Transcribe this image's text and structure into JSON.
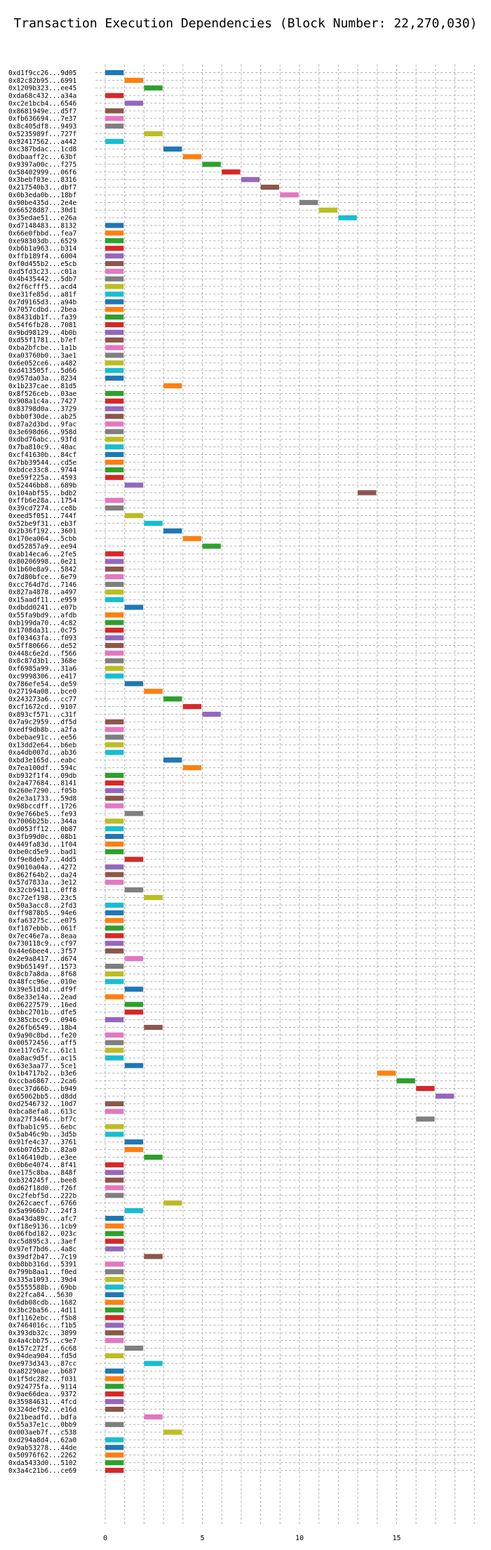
{
  "chart_data": {
    "type": "bar",
    "title": "Transaction Execution Dependencies (Block Number: 22,270,030)",
    "xlabel": "",
    "ylabel": "",
    "xlim": [
      -0.5,
      19
    ],
    "xticks": [
      0,
      5,
      10,
      15
    ],
    "grid": true,
    "palette": [
      "#1f77b4",
      "#ff7f0e",
      "#2ca02c",
      "#d62728",
      "#9467bd",
      "#8c564b",
      "#e377c2",
      "#7f7f7f",
      "#bcbd22",
      "#17becf"
    ],
    "transactions": [
      {
        "label": "0xd1f9cc26...9d05",
        "x": 0
      },
      {
        "label": "0x82c82b95...6991",
        "x": 1
      },
      {
        "label": "0x1209b323...ee45",
        "x": 2
      },
      {
        "label": "0xda68c432...a34a",
        "x": 0
      },
      {
        "label": "0xc2e1bcb4...6546",
        "x": 1
      },
      {
        "label": "0x8681949e...d5f7",
        "x": 0
      },
      {
        "label": "0xfb636694...7e37",
        "x": 0
      },
      {
        "label": "0x8c405df8...9493",
        "x": 0
      },
      {
        "label": "0x5235989f...727f",
        "x": 2
      },
      {
        "label": "0x92417562...a442",
        "x": 0
      },
      {
        "label": "0xc387bdac...1cd8",
        "x": 3
      },
      {
        "label": "0xdbaaff2c...63bf",
        "x": 4
      },
      {
        "label": "0x9397a00c...f275",
        "x": 5
      },
      {
        "label": "0x58402999...06f6",
        "x": 6
      },
      {
        "label": "0x3bebf03e...8316",
        "x": 7
      },
      {
        "label": "0x217540b3...dbf7",
        "x": 8
      },
      {
        "label": "0x0b3eda0b...18bf",
        "x": 9
      },
      {
        "label": "0x90be435d...2e4e",
        "x": 10
      },
      {
        "label": "0x66528d87...30d1",
        "x": 11
      },
      {
        "label": "0x35edae51...e26a",
        "x": 12
      },
      {
        "label": "0xd7148483...8132",
        "x": 0
      },
      {
        "label": "0x66e0fbbd...fea7",
        "x": 0
      },
      {
        "label": "0xe98303db...6529",
        "x": 0
      },
      {
        "label": "0xb6b1a963...b314",
        "x": 0
      },
      {
        "label": "0xffb189f4...6004",
        "x": 0
      },
      {
        "label": "0xf0d455b2...e5cb",
        "x": 0
      },
      {
        "label": "0xd5fd3c23...c01a",
        "x": 0
      },
      {
        "label": "0x4b435442...5db7",
        "x": 0
      },
      {
        "label": "0x2f6cfff5...acd4",
        "x": 0
      },
      {
        "label": "0xe31fe85d...a81f",
        "x": 0
      },
      {
        "label": "0x7d9165d3...a94b",
        "x": 0
      },
      {
        "label": "0x7057cdbd...2bea",
        "x": 0
      },
      {
        "label": "0x8431db1f...fa39",
        "x": 0
      },
      {
        "label": "0x54f6fb28...7081",
        "x": 0
      },
      {
        "label": "0x9bd98129...4b0b",
        "x": 0
      },
      {
        "label": "0xd55f1781...b7ef",
        "x": 0
      },
      {
        "label": "0xba2bfcbe...1a1b",
        "x": 0
      },
      {
        "label": "0xa03760b0...3ae1",
        "x": 0
      },
      {
        "label": "0x6e052ce6...a482",
        "x": 0
      },
      {
        "label": "0xd413505f...5d66",
        "x": 0
      },
      {
        "label": "0x957da03a...8234",
        "x": 0
      },
      {
        "label": "0x1b237cae...81d5",
        "x": 3
      },
      {
        "label": "0x8f526ceb...03ae",
        "x": 0
      },
      {
        "label": "0x908a1c4a...7427",
        "x": 0
      },
      {
        "label": "0x83798d0a...3729",
        "x": 0
      },
      {
        "label": "0xbb0f30de...ab25",
        "x": 0
      },
      {
        "label": "0x87a2d3bd...9fac",
        "x": 0
      },
      {
        "label": "0x3e698d66...958d",
        "x": 0
      },
      {
        "label": "0xdbd76abc...93fd",
        "x": 0
      },
      {
        "label": "0x7ba810c9...40ac",
        "x": 0
      },
      {
        "label": "0xcf41630b...84cf",
        "x": 0
      },
      {
        "label": "0x7bb39544...cd5e",
        "x": 0
      },
      {
        "label": "0xbdce33c8...9744",
        "x": 0
      },
      {
        "label": "0xe59f225a...4593",
        "x": 0
      },
      {
        "label": "0x52446bb8...689b",
        "x": 1
      },
      {
        "label": "0x104abf55...bdb2",
        "x": 13
      },
      {
        "label": "0xffb6e28a...1754",
        "x": 0
      },
      {
        "label": "0x39cd7274...ce8b",
        "x": 0
      },
      {
        "label": "0xeed5f051...744f",
        "x": 1
      },
      {
        "label": "0x52be9f31...eb3f",
        "x": 2
      },
      {
        "label": "0x2b36f192...3601",
        "x": 3
      },
      {
        "label": "0x170ea064...5cbb",
        "x": 4
      },
      {
        "label": "0xd52857a9...ee94",
        "x": 5
      },
      {
        "label": "0xab14eca6...2fe5",
        "x": 0
      },
      {
        "label": "0x80206998...0e21",
        "x": 0
      },
      {
        "label": "0x1b60e8a9...5842",
        "x": 0
      },
      {
        "label": "0x7d80bfce...6e79",
        "x": 0
      },
      {
        "label": "0xcc764d7d...7146",
        "x": 0
      },
      {
        "label": "0x827a4878...a497",
        "x": 0
      },
      {
        "label": "0x15aadf11...e959",
        "x": 0
      },
      {
        "label": "0xdbdd0241...e07b",
        "x": 1
      },
      {
        "label": "0x55fa9bd9...afdb",
        "x": 0
      },
      {
        "label": "0xb199da70...4c82",
        "x": 0
      },
      {
        "label": "0x1708da31...0c75",
        "x": 0
      },
      {
        "label": "0xf03463fa...f093",
        "x": 0
      },
      {
        "label": "0x5ff80666...de52",
        "x": 0
      },
      {
        "label": "0x448c6e2d...f566",
        "x": 0
      },
      {
        "label": "0x8c87d3b1...368e",
        "x": 0
      },
      {
        "label": "0xf6985a99...31a6",
        "x": 0
      },
      {
        "label": "0xc9998306...e417",
        "x": 0
      },
      {
        "label": "0x786efe54...de59",
        "x": 1
      },
      {
        "label": "0x27194a08...bce0",
        "x": 2
      },
      {
        "label": "0x243273a6...cc77",
        "x": 3
      },
      {
        "label": "0xcf1672cd...9107",
        "x": 4
      },
      {
        "label": "0x893cf571...c31f",
        "x": 5
      },
      {
        "label": "0x7a9c2959...df5d",
        "x": 0
      },
      {
        "label": "0xedf9db8b...a2fa",
        "x": 0
      },
      {
        "label": "0xbebae91c...ee56",
        "x": 0
      },
      {
        "label": "0x13dd2e64...b6eb",
        "x": 0
      },
      {
        "label": "0xa4db007d...ab36",
        "x": 0
      },
      {
        "label": "0xbd3e165d...eabc",
        "x": 3
      },
      {
        "label": "0x7ea100df...594c",
        "x": 4
      },
      {
        "label": "0xb932f1f4...09db",
        "x": 0
      },
      {
        "label": "0x2a477684...8141",
        "x": 0
      },
      {
        "label": "0x260e7290...f05b",
        "x": 0
      },
      {
        "label": "0x2e3a1733...59d8",
        "x": 0
      },
      {
        "label": "0x98bccdff...1726",
        "x": 0
      },
      {
        "label": "0x9e766be5...fe93",
        "x": 1
      },
      {
        "label": "0x7006b25b...344a",
        "x": 0
      },
      {
        "label": "0xd053ff12...0b87",
        "x": 0
      },
      {
        "label": "0x3fb99d0c...08b1",
        "x": 0
      },
      {
        "label": "0x449fa83d...1f04",
        "x": 0
      },
      {
        "label": "0xbe0cd5e9...bad1",
        "x": 0
      },
      {
        "label": "0xf9e8deb7...4dd5",
        "x": 1
      },
      {
        "label": "0x9010a04a...4272",
        "x": 0
      },
      {
        "label": "0x862f64b2...da24",
        "x": 0
      },
      {
        "label": "0x57d7833a...3e12",
        "x": 0
      },
      {
        "label": "0x32cb9411...0ff8",
        "x": 1
      },
      {
        "label": "0xc72ef198...23c5",
        "x": 2
      },
      {
        "label": "0x50a3acc8...2fd3",
        "x": 0
      },
      {
        "label": "0xff9878b5...94e6",
        "x": 0
      },
      {
        "label": "0xfa63275c...e075",
        "x": 0
      },
      {
        "label": "0xf187ebbb...061f",
        "x": 0
      },
      {
        "label": "0x7ec46e7a...8eaa",
        "x": 0
      },
      {
        "label": "0x730118c9...cf97",
        "x": 0
      },
      {
        "label": "0x44e6bee4...3f57",
        "x": 0
      },
      {
        "label": "0x2e9a8417...d674",
        "x": 1
      },
      {
        "label": "0x9b65149f...1573",
        "x": 0
      },
      {
        "label": "0x8cb7a8da...8f68",
        "x": 0
      },
      {
        "label": "0x48fcc96e...010e",
        "x": 0
      },
      {
        "label": "0x39e51d3d...df9f",
        "x": 1
      },
      {
        "label": "0x8e33e14a...2ead",
        "x": 0
      },
      {
        "label": "0x06227579...16ed",
        "x": 1
      },
      {
        "label": "0xbbc2701b...dfe5",
        "x": 1
      },
      {
        "label": "0x385cbcc9...0946",
        "x": 0
      },
      {
        "label": "0x26fb6549...18b4",
        "x": 2
      },
      {
        "label": "0x9a90c8bd...fe20",
        "x": 0
      },
      {
        "label": "0x00572456...aff5",
        "x": 0
      },
      {
        "label": "0xe117c67c...61c1",
        "x": 0
      },
      {
        "label": "0xa8ac9d5f...ac15",
        "x": 0
      },
      {
        "label": "0x63e3aa77...5ce1",
        "x": 1
      },
      {
        "label": "0x1b4717b2...b3e6",
        "x": 14
      },
      {
        "label": "0xccba6867...2ca6",
        "x": 15
      },
      {
        "label": "0xec37d66b...b949",
        "x": 16
      },
      {
        "label": "0x65062bb5...d8dd",
        "x": 17
      },
      {
        "label": "0xd2546732...10d7",
        "x": 0
      },
      {
        "label": "0xbca8efa8...613c",
        "x": 0
      },
      {
        "label": "0xa27f3446...bf7c",
        "x": 16
      },
      {
        "label": "0xfbab1c95...6ebc",
        "x": 0
      },
      {
        "label": "0x5ab46c9b...3d5b",
        "x": 0
      },
      {
        "label": "0x91fe4c37...3761",
        "x": 1
      },
      {
        "label": "0x6b07d52b...82a0",
        "x": 1
      },
      {
        "label": "0x146410db...e3ee",
        "x": 2
      },
      {
        "label": "0x0b6e4074...8f41",
        "x": 0
      },
      {
        "label": "0xe175c8ba...848f",
        "x": 0
      },
      {
        "label": "0xb324245f...bee8",
        "x": 0
      },
      {
        "label": "0xd62f18d0...f26f",
        "x": 0
      },
      {
        "label": "0xc2febf5d...222b",
        "x": 0
      },
      {
        "label": "0x262caecf...6766",
        "x": 3
      },
      {
        "label": "0x5a9966b7...24f3",
        "x": 1
      },
      {
        "label": "0xa43da89c...afc7",
        "x": 0
      },
      {
        "label": "0xf18e9136...1cb9",
        "x": 0
      },
      {
        "label": "0x06fbd182...023c",
        "x": 0
      },
      {
        "label": "0xc5d895c3...3aef",
        "x": 0
      },
      {
        "label": "0x97ef7bd6...4a8c",
        "x": 0
      },
      {
        "label": "0x39df2b47...7c19",
        "x": 2
      },
      {
        "label": "0xb8bb316d...5391",
        "x": 0
      },
      {
        "label": "0x799b8aa1...f0ed",
        "x": 0
      },
      {
        "label": "0x335a1093...39d4",
        "x": 0
      },
      {
        "label": "0x5555588b...69bb",
        "x": 0
      },
      {
        "label": "0x22fca84...5630",
        "x": 0
      },
      {
        "label": "0x6db08cdb...1682",
        "x": 0
      },
      {
        "label": "0x3bc2ba56...4d11",
        "x": 0
      },
      {
        "label": "0xf1162ebc...f5b8",
        "x": 0
      },
      {
        "label": "0x7464016c...f1b5",
        "x": 0
      },
      {
        "label": "0x393db32c...3899",
        "x": 0
      },
      {
        "label": "0x4a4cbb75...c9e7",
        "x": 0
      },
      {
        "label": "0x157c272f...6c68",
        "x": 1
      },
      {
        "label": "0x94dea904...fd5d",
        "x": 0
      },
      {
        "label": "0xe973d343...87cc",
        "x": 2
      },
      {
        "label": "0xa82290ae...b687",
        "x": 0
      },
      {
        "label": "0x1f5dc282...f031",
        "x": 0
      },
      {
        "label": "0x924775fa...9114",
        "x": 0
      },
      {
        "label": "0x9ae66dea...9372",
        "x": 0
      },
      {
        "label": "0x35984631...4fcd",
        "x": 0
      },
      {
        "label": "0x324def92...e16d",
        "x": 0
      },
      {
        "label": "0x21beadfd...bdfa",
        "x": 2
      },
      {
        "label": "0x55a37e1c...0bb9",
        "x": 0
      },
      {
        "label": "0x003aeb7f...c538",
        "x": 3
      },
      {
        "label": "0xd294a8d4...62a0",
        "x": 0
      },
      {
        "label": "0x9ab53278...44de",
        "x": 0
      },
      {
        "label": "0x50976f62...2262",
        "x": 0
      },
      {
        "label": "0xda5433d0...5102",
        "x": 0
      },
      {
        "label": "0x3a4c21b6...ce69",
        "x": 0
      }
    ]
  }
}
